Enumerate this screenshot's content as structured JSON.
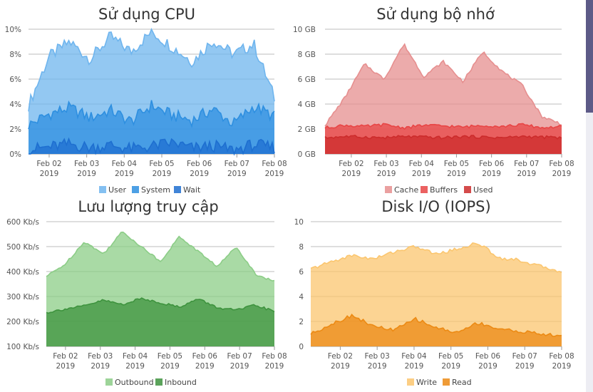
{
  "chart_data": [
    {
      "type": "area",
      "title": "Sử dụng CPU",
      "ylabel": "",
      "xlabel": "",
      "ylim": [
        0,
        10
      ],
      "yticks": [
        "0%",
        "2%",
        "4%",
        "6%",
        "8%",
        "10%"
      ],
      "x_ticks": [
        [
          "Feb 02",
          "2019"
        ],
        [
          "Feb 03",
          "2019"
        ],
        [
          "Feb 04",
          "2019"
        ],
        [
          "Feb 05",
          "2019"
        ],
        [
          "Feb 06",
          "2019"
        ],
        [
          "Feb 07",
          "2019"
        ],
        [
          "Feb 08",
          "2019"
        ]
      ],
      "x_start_day": 1.45,
      "x_end_day": 8.0,
      "legend_position": "bottom",
      "series": [
        {
          "name": "Wait",
          "color": "#1e6fd0",
          "cycle": [
            0.35,
            0.55,
            0.8,
            0.5,
            0.7,
            0.4,
            0.6,
            0.9,
            0.45,
            0.65,
            0.3,
            0.75,
            0.5
          ]
        },
        {
          "name": "System",
          "color": "#2e8fe0",
          "cycle": [
            2.3,
            3.2,
            3.7,
            2.9,
            3.5,
            2.6,
            3.9,
            3.1,
            2.7,
            3.6,
            2.4,
            3.8,
            3.0
          ]
        },
        {
          "name": "User",
          "color": "#6fb5ee",
          "cycle": [
            3.9,
            7.8,
            9.0,
            7.6,
            9.4,
            8.2,
            9.8,
            8.6,
            7.4,
            9.1,
            8.0,
            8.8,
            4.5
          ]
        }
      ]
    },
    {
      "type": "area",
      "title": "Sử dụng bộ nhớ",
      "ylabel": "",
      "xlabel": "",
      "ylim": [
        0,
        10
      ],
      "yticks": [
        "0 GB",
        "2 GB",
        "4 GB",
        "6 GB",
        "8 GB",
        "10 GB"
      ],
      "x_ticks": [
        [
          "Feb 02",
          "2019"
        ],
        [
          "Feb 03",
          "2019"
        ],
        [
          "Feb 04",
          "2019"
        ],
        [
          "Feb 05",
          "2019"
        ],
        [
          "Feb 06",
          "2019"
        ],
        [
          "Feb 07",
          "2019"
        ],
        [
          "Feb 08",
          "2019"
        ]
      ],
      "x_start_day": 1.25,
      "x_end_day": 8.0,
      "legend_position": "bottom",
      "series": [
        {
          "name": "Used",
          "color": "#cc2b2b",
          "cycle": [
            1.3,
            1.4,
            1.35,
            1.3,
            1.4,
            1.35,
            1.3,
            1.4,
            1.35,
            1.3,
            1.4,
            1.35,
            1.3
          ]
        },
        {
          "name": "Buffers",
          "color": "#e84545",
          "cycle": [
            2.1,
            2.3,
            2.2,
            2.35,
            2.1,
            2.3,
            2.25,
            2.15,
            2.3,
            2.2,
            2.35,
            2.1,
            2.2
          ]
        },
        {
          "name": "Cache",
          "color": "#e68f8f",
          "cycle": [
            2.3,
            4.5,
            7.2,
            6.0,
            8.8,
            6.2,
            7.4,
            5.8,
            8.2,
            6.6,
            5.5,
            3.0,
            2.4
          ]
        }
      ]
    },
    {
      "type": "area",
      "title": "Lưu lượng truy cập",
      "ylabel": "",
      "xlabel": "",
      "ylim": [
        100,
        600
      ],
      "yticks": [
        "100 Kb/s",
        "200 Kb/s",
        "300 Kb/s",
        "400 Kb/s",
        "500 Kb/s",
        "600 Kb/s"
      ],
      "x_ticks": [
        [
          "Feb 02",
          "2019"
        ],
        [
          "Feb 03",
          "2019"
        ],
        [
          "Feb 04",
          "2019"
        ],
        [
          "Feb 05",
          "2019"
        ],
        [
          "Feb 06",
          "2019"
        ],
        [
          "Feb 07",
          "2019"
        ],
        [
          "Feb 08",
          "2019"
        ]
      ],
      "x_start_day": 1.45,
      "x_end_day": 8.0,
      "legend_position": "bottom",
      "series": [
        {
          "name": "Inbound",
          "color": "#3e933e",
          "cycle": [
            235,
            250,
            262,
            285,
            268,
            292,
            275,
            258,
            290,
            255,
            245,
            265,
            240
          ]
        },
        {
          "name": "Outbound",
          "color": "#8ccd87",
          "cycle": [
            380,
            430,
            520,
            470,
            560,
            500,
            440,
            540,
            480,
            420,
            500,
            390,
            360
          ]
        }
      ]
    },
    {
      "type": "area",
      "title": "Disk I/O (IOPS)",
      "ylabel": "",
      "xlabel": "",
      "ylim": [
        0,
        10
      ],
      "yticks": [
        "0",
        "2",
        "4",
        "6",
        "8",
        "10"
      ],
      "x_ticks": [
        [
          "Feb 02",
          "2019"
        ],
        [
          "Feb 03",
          "2019"
        ],
        [
          "Feb 04",
          "2019"
        ],
        [
          "Feb 05",
          "2019"
        ],
        [
          "Feb 06",
          "2019"
        ],
        [
          "Feb 07",
          "2019"
        ],
        [
          "Feb 08",
          "2019"
        ]
      ],
      "x_start_day": 1.2,
      "x_end_day": 8.0,
      "legend_position": "bottom",
      "series": [
        {
          "name": "Read",
          "color": "#ec8a14",
          "cycle": [
            1.0,
            1.8,
            2.5,
            1.6,
            1.3,
            2.2,
            1.5,
            1.1,
            1.9,
            1.4,
            1.2,
            1.0,
            0.8
          ]
        },
        {
          "name": "Write",
          "color": "#fbc66f",
          "cycle": [
            6.2,
            6.8,
            7.3,
            7.0,
            7.6,
            8.0,
            7.4,
            7.8,
            8.3,
            7.1,
            6.9,
            6.4,
            6.0
          ]
        }
      ]
    }
  ],
  "legends": [
    [
      "User",
      "System",
      "Wait"
    ],
    [
      "Cache",
      "Buffers",
      "Used"
    ],
    [
      "Outbound",
      "Inbound"
    ],
    [
      "Write",
      "Read"
    ]
  ]
}
